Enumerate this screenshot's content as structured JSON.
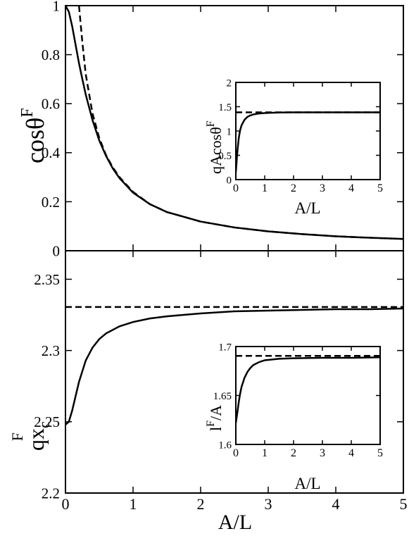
{
  "chart_data": [
    {
      "id": "top-main",
      "type": "line",
      "ylabel": "cosθ",
      "ylabel_sup": "F",
      "xlim": [
        0,
        5
      ],
      "ylim": [
        0,
        1
      ],
      "x_ticks": [
        0,
        1,
        2,
        3,
        4,
        5
      ],
      "y_ticks": [
        0,
        0.2,
        0.4,
        0.6,
        0.8,
        1
      ],
      "y_tick_labels": [
        "0",
        "0.2",
        "0.4",
        "0.6",
        "0.8",
        "1"
      ],
      "show_x_tick_labels": false,
      "series": [
        {
          "style": "solid",
          "x": [
            0,
            0.05,
            0.1,
            0.15,
            0.2,
            0.25,
            0.3,
            0.4,
            0.5,
            0.6,
            0.7,
            0.8,
            1.0,
            1.25,
            1.5,
            2.0,
            2.5,
            3.0,
            3.5,
            4.0,
            4.5,
            5.0
          ],
          "y": [
            1.0,
            0.975,
            0.915,
            0.84,
            0.765,
            0.7,
            0.637,
            0.533,
            0.45,
            0.387,
            0.336,
            0.296,
            0.237,
            0.19,
            0.158,
            0.119,
            0.095,
            0.079,
            0.068,
            0.059,
            0.053,
            0.048
          ]
        },
        {
          "style": "dashed",
          "x": [
            0.2,
            0.25,
            0.3,
            0.4,
            0.5,
            0.6,
            0.7,
            0.8,
            1.0,
            1.25,
            1.5,
            2.0,
            2.5,
            3.0,
            3.5,
            4.0,
            4.5,
            5.0
          ],
          "y": [
            1.0,
            0.85,
            0.72,
            0.56,
            0.46,
            0.39,
            0.34,
            0.3,
            0.24,
            0.19,
            0.158,
            0.119,
            0.095,
            0.079,
            0.068,
            0.059,
            0.053,
            0.048
          ]
        }
      ]
    },
    {
      "id": "top-inset",
      "type": "line",
      "xlabel": "A/L",
      "ylabel": "qAcosθ",
      "ylabel_sup": "F",
      "xlim": [
        0,
        5
      ],
      "ylim": [
        0,
        2
      ],
      "x_ticks": [
        0,
        1,
        2,
        3,
        4,
        5
      ],
      "x_tick_labels": [
        "0",
        "1",
        "2",
        "3",
        "4",
        "5"
      ],
      "y_ticks": [
        0,
        0.5,
        1,
        1.5,
        2
      ],
      "y_tick_labels": [
        "0",
        "0.5",
        "1",
        "1.5",
        "2"
      ],
      "series": [
        {
          "style": "solid",
          "x": [
            0,
            0.05,
            0.1,
            0.15,
            0.2,
            0.3,
            0.4,
            0.5,
            0.6,
            0.8,
            1.0,
            1.5,
            2.0,
            3.0,
            4.0,
            5.0
          ],
          "y": [
            0.15,
            0.55,
            0.85,
            1.02,
            1.12,
            1.23,
            1.29,
            1.32,
            1.34,
            1.36,
            1.37,
            1.38,
            1.385,
            1.385,
            1.385,
            1.385
          ]
        },
        {
          "style": "dashed",
          "x": [
            0,
            5
          ],
          "y": [
            1.385,
            1.385
          ]
        }
      ]
    },
    {
      "id": "bottom-main",
      "type": "line",
      "xlabel": "A/L",
      "ylabel": "qx",
      "ylabel_sub": "c",
      "ylabel_sup": "F",
      "xlim": [
        0,
        5
      ],
      "ylim": [
        2.2,
        2.37
      ],
      "x_ticks": [
        0,
        1,
        2,
        3,
        4,
        5
      ],
      "x_tick_labels": [
        "0",
        "1",
        "2",
        "3",
        "4",
        "5"
      ],
      "y_ticks": [
        2.2,
        2.25,
        2.3,
        2.35
      ],
      "y_tick_labels": [
        "2.2",
        "2.25",
        "2.3",
        "2.35"
      ],
      "series": [
        {
          "style": "solid",
          "x": [
            0,
            0.05,
            0.1,
            0.15,
            0.2,
            0.3,
            0.4,
            0.5,
            0.6,
            0.8,
            1.0,
            1.25,
            1.5,
            2.0,
            2.5,
            3.0,
            3.5,
            4.0,
            4.5,
            5.0
          ],
          "y": [
            2.248,
            2.25,
            2.258,
            2.268,
            2.278,
            2.293,
            2.302,
            2.308,
            2.312,
            2.317,
            2.32,
            2.3225,
            2.324,
            2.326,
            2.3275,
            2.328,
            2.3285,
            2.329,
            2.329,
            2.3295
          ]
        },
        {
          "style": "dashed",
          "x": [
            0,
            5
          ],
          "y": [
            2.3305,
            2.3305
          ]
        }
      ]
    },
    {
      "id": "bottom-inset",
      "type": "line",
      "xlabel": "A/L",
      "ylabel": "l",
      "ylabel_sup": "F",
      "ylabel_tail": "/A",
      "xlim": [
        0,
        5
      ],
      "ylim": [
        1.6,
        1.7
      ],
      "x_ticks": [
        0,
        1,
        2,
        3,
        4,
        5
      ],
      "x_tick_labels": [
        "0",
        "1",
        "2",
        "3",
        "4",
        "5"
      ],
      "y_ticks": [
        1.6,
        1.65,
        1.7
      ],
      "y_tick_labels": [
        "1.6",
        "1.65",
        "1.7"
      ],
      "series": [
        {
          "style": "solid",
          "x": [
            0,
            0.05,
            0.1,
            0.15,
            0.2,
            0.3,
            0.4,
            0.5,
            0.6,
            0.8,
            1.0,
            1.5,
            2.0,
            3.0,
            4.0,
            5.0
          ],
          "y": [
            1.622,
            1.632,
            1.643,
            1.652,
            1.659,
            1.668,
            1.674,
            1.678,
            1.681,
            1.684,
            1.686,
            1.6875,
            1.688,
            1.6885,
            1.6885,
            1.689
          ]
        },
        {
          "style": "dashed",
          "x": [
            0,
            5
          ],
          "y": [
            1.6905,
            1.6905
          ]
        }
      ]
    }
  ]
}
